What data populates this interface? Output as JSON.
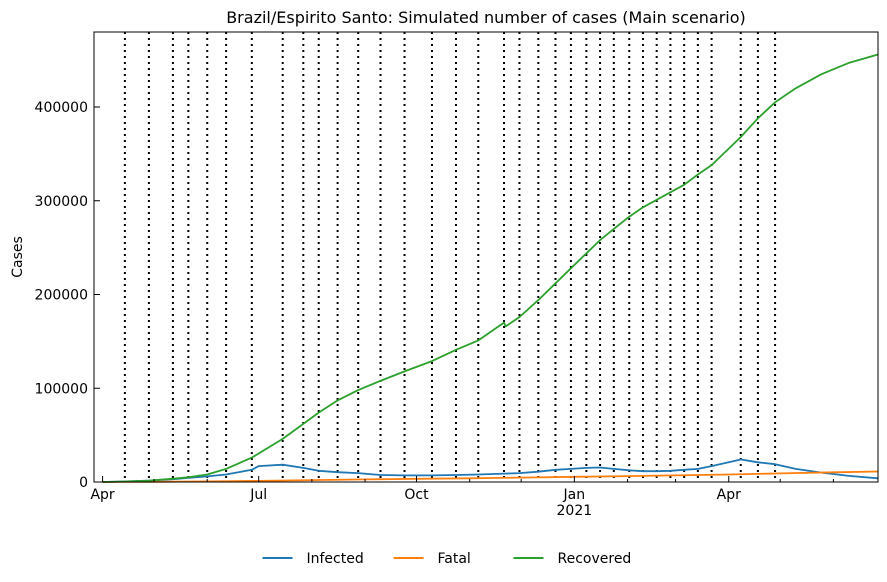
{
  "chart_data": {
    "type": "line",
    "title": "Brazil/Espirito Santo: Simulated number of cases (Main scenario)",
    "xlabel": "",
    "ylabel": "Cases",
    "x_range": [
      "2020-03-27",
      "2021-06-27"
    ],
    "ylim": [
      0,
      480000
    ],
    "y_ticks": [
      0,
      100000,
      200000,
      300000,
      400000
    ],
    "y_tick_labels": [
      "0",
      "100000",
      "200000",
      "300000",
      "400000"
    ],
    "x_ticks": [
      {
        "date": "2020-04-01",
        "label": "Apr",
        "sublabel": ""
      },
      {
        "date": "2020-07-01",
        "label": "Jul",
        "sublabel": ""
      },
      {
        "date": "2020-10-01",
        "label": "Oct",
        "sublabel": ""
      },
      {
        "date": "2021-01-01",
        "label": "Jan",
        "sublabel": "2021"
      },
      {
        "date": "2021-04-01",
        "label": "Apr",
        "sublabel": ""
      }
    ],
    "minor_tick_months": [
      "2020-05-01",
      "2020-06-01",
      "2020-08-01",
      "2020-09-01",
      "2020-11-01",
      "2020-12-01",
      "2021-02-01",
      "2021-03-01",
      "2021-05-01",
      "2021-06-01"
    ],
    "phase_change_dates": [
      "2020-04-14",
      "2020-04-28",
      "2020-05-12",
      "2020-05-21",
      "2020-06-01",
      "2020-06-12",
      "2020-06-27",
      "2020-07-15",
      "2020-07-27",
      "2020-08-05",
      "2020-08-16",
      "2020-08-28",
      "2020-09-10",
      "2020-09-24",
      "2020-10-10",
      "2020-10-24",
      "2020-11-06",
      "2020-11-21",
      "2020-11-30",
      "2020-12-11",
      "2020-12-21",
      "2020-12-30",
      "2021-01-08",
      "2021-01-16",
      "2021-01-24",
      "2021-02-02",
      "2021-02-10",
      "2021-02-18",
      "2021-02-26",
      "2021-03-06",
      "2021-03-14",
      "2021-03-22",
      "2021-04-08",
      "2021-04-18",
      "2021-04-28"
    ],
    "grid": false,
    "legend_position": "bottom-center",
    "series": [
      {
        "name": "Infected",
        "color": "#1f77b4",
        "points": [
          [
            "2020-04-01",
            0
          ],
          [
            "2020-04-14",
            500
          ],
          [
            "2020-04-28",
            1500
          ],
          [
            "2020-05-12",
            3000
          ],
          [
            "2020-05-21",
            4500
          ],
          [
            "2020-06-01",
            6000
          ],
          [
            "2020-06-12",
            8000
          ],
          [
            "2020-06-27",
            13000
          ],
          [
            "2020-07-01",
            17000
          ],
          [
            "2020-07-15",
            18500
          ],
          [
            "2020-07-27",
            15000
          ],
          [
            "2020-08-05",
            12000
          ],
          [
            "2020-08-16",
            10500
          ],
          [
            "2020-08-28",
            9500
          ],
          [
            "2020-09-10",
            7500
          ],
          [
            "2020-09-24",
            7000
          ],
          [
            "2020-10-10",
            7000
          ],
          [
            "2020-10-24",
            7500
          ],
          [
            "2020-11-06",
            8000
          ],
          [
            "2020-11-21",
            9000
          ],
          [
            "2020-11-30",
            9500
          ],
          [
            "2020-12-11",
            11000
          ],
          [
            "2020-12-21",
            13000
          ],
          [
            "2020-12-30",
            14000
          ],
          [
            "2021-01-08",
            15000
          ],
          [
            "2021-01-16",
            15500
          ],
          [
            "2021-01-24",
            14000
          ],
          [
            "2021-02-02",
            12500
          ],
          [
            "2021-02-10",
            11500
          ],
          [
            "2021-02-18",
            11500
          ],
          [
            "2021-02-26",
            12000
          ],
          [
            "2021-03-06",
            13000
          ],
          [
            "2021-03-14",
            14000
          ],
          [
            "2021-03-22",
            17000
          ],
          [
            "2021-04-08",
            24000
          ],
          [
            "2021-04-18",
            21000
          ],
          [
            "2021-04-28",
            19000
          ],
          [
            "2021-05-10",
            14000
          ],
          [
            "2021-05-25",
            10000
          ],
          [
            "2021-06-10",
            6500
          ],
          [
            "2021-06-27",
            4000
          ]
        ]
      },
      {
        "name": "Fatal",
        "color": "#ff7f0e",
        "points": [
          [
            "2020-04-01",
            0
          ],
          [
            "2020-05-01",
            200
          ],
          [
            "2020-06-01",
            600
          ],
          [
            "2020-07-01",
            1200
          ],
          [
            "2020-08-01",
            2000
          ],
          [
            "2020-09-01",
            2800
          ],
          [
            "2020-10-01",
            3400
          ],
          [
            "2020-11-01",
            4000
          ],
          [
            "2020-12-01",
            4700
          ],
          [
            "2021-01-01",
            5500
          ],
          [
            "2021-02-01",
            6300
          ],
          [
            "2021-03-01",
            7000
          ],
          [
            "2021-04-01",
            8000
          ],
          [
            "2021-05-01",
            9200
          ],
          [
            "2021-06-01",
            10400
          ],
          [
            "2021-06-27",
            11200
          ]
        ]
      },
      {
        "name": "Recovered",
        "color": "#2ca02c",
        "points": [
          [
            "2020-04-01",
            0
          ],
          [
            "2020-04-14",
            500
          ],
          [
            "2020-04-28",
            1500
          ],
          [
            "2020-05-12",
            3500
          ],
          [
            "2020-05-21",
            5000
          ],
          [
            "2020-06-01",
            8000
          ],
          [
            "2020-06-12",
            14000
          ],
          [
            "2020-06-27",
            26000
          ],
          [
            "2020-07-15",
            46000
          ],
          [
            "2020-07-27",
            62000
          ],
          [
            "2020-08-05",
            74000
          ],
          [
            "2020-08-16",
            87000
          ],
          [
            "2020-08-28",
            98000
          ],
          [
            "2020-09-10",
            108000
          ],
          [
            "2020-09-24",
            118000
          ],
          [
            "2020-10-10",
            129000
          ],
          [
            "2020-10-24",
            141000
          ],
          [
            "2020-11-06",
            151000
          ],
          [
            "2020-11-21",
            170000
          ],
          [
            "2020-11-22",
            166000
          ],
          [
            "2020-11-30",
            176000
          ],
          [
            "2020-12-11",
            194000
          ],
          [
            "2020-12-21",
            212000
          ],
          [
            "2020-12-30",
            228000
          ],
          [
            "2021-01-08",
            244000
          ],
          [
            "2021-01-16",
            258000
          ],
          [
            "2021-01-24",
            270000
          ],
          [
            "2021-02-02",
            283000
          ],
          [
            "2021-02-10",
            293000
          ],
          [
            "2021-02-18",
            301000
          ],
          [
            "2021-02-26",
            309000
          ],
          [
            "2021-03-06",
            317000
          ],
          [
            "2021-03-14",
            328000
          ],
          [
            "2021-03-22",
            338000
          ],
          [
            "2021-04-08",
            368000
          ],
          [
            "2021-04-18",
            388000
          ],
          [
            "2021-04-28",
            405000
          ],
          [
            "2021-05-10",
            420000
          ],
          [
            "2021-05-25",
            435000
          ],
          [
            "2021-06-10",
            447000
          ],
          [
            "2021-06-27",
            456000
          ]
        ]
      }
    ]
  }
}
